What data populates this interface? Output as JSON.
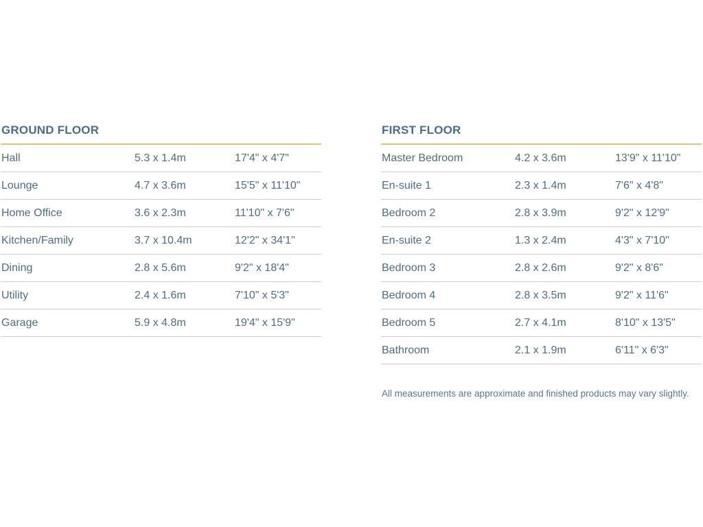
{
  "ground_floor": {
    "title": "GROUND FLOOR",
    "rows": [
      {
        "room": "Hall",
        "metric": "5.3 x 1.4m",
        "imperial": "17'4\" x 4'7\""
      },
      {
        "room": "Lounge",
        "metric": "4.7 x 3.6m",
        "imperial": "15'5\" x 11'10\""
      },
      {
        "room": "Home Office",
        "metric": "3.6 x 2.3m",
        "imperial": "11'10\" x 7'6\""
      },
      {
        "room": "Kitchen/Family",
        "metric": "3.7 x 10.4m",
        "imperial": "12'2\" x 34'1\""
      },
      {
        "room": "Dining",
        "metric": "2.8 x 5.6m",
        "imperial": "9'2\" x 18'4\""
      },
      {
        "room": "Utility",
        "metric": "2.4 x 1.6m",
        "imperial": "7'10\" x 5'3\""
      },
      {
        "room": "Garage",
        "metric": "5.9 x 4.8m",
        "imperial": "19'4\" x 15'9\""
      }
    ]
  },
  "first_floor": {
    "title": "FIRST FLOOR",
    "rows": [
      {
        "room": "Master Bedroom",
        "metric": "4.2 x 3.6m",
        "imperial": "13'9\" x 11'10\""
      },
      {
        "room": "En-suite 1",
        "metric": "2.3 x 1.4m",
        "imperial": "7'6\" x 4'8\""
      },
      {
        "room": "Bedroom 2",
        "metric": "2.8 x 3.9m",
        "imperial": "9'2\" x 12'9\""
      },
      {
        "room": "En-suite 2",
        "metric": "1.3 x 2.4m",
        "imperial": "4'3\" x 7'10\""
      },
      {
        "room": "Bedroom 3",
        "metric": "2.8 x 2.6m",
        "imperial": "9'2\" x 8'6\""
      },
      {
        "room": "Bedroom 4",
        "metric": "2.8 x 3.5m",
        "imperial": "9'2\" x 11'6\""
      },
      {
        "room": "Bedroom 5",
        "metric": "2.7 x 4.1m",
        "imperial": "8'10\" x 13'5\""
      },
      {
        "room": "Bathroom",
        "metric": "2.1 x 1.9m",
        "imperial": "6'11\" x 6'3\""
      }
    ]
  },
  "note": "All measurements are approximate and finished products may vary slightly.",
  "colors": {
    "text": "#4f6b85",
    "heading": "#4a6b8a",
    "accent_rule": "#d9c47e",
    "row_rule": "#c9cedb"
  }
}
